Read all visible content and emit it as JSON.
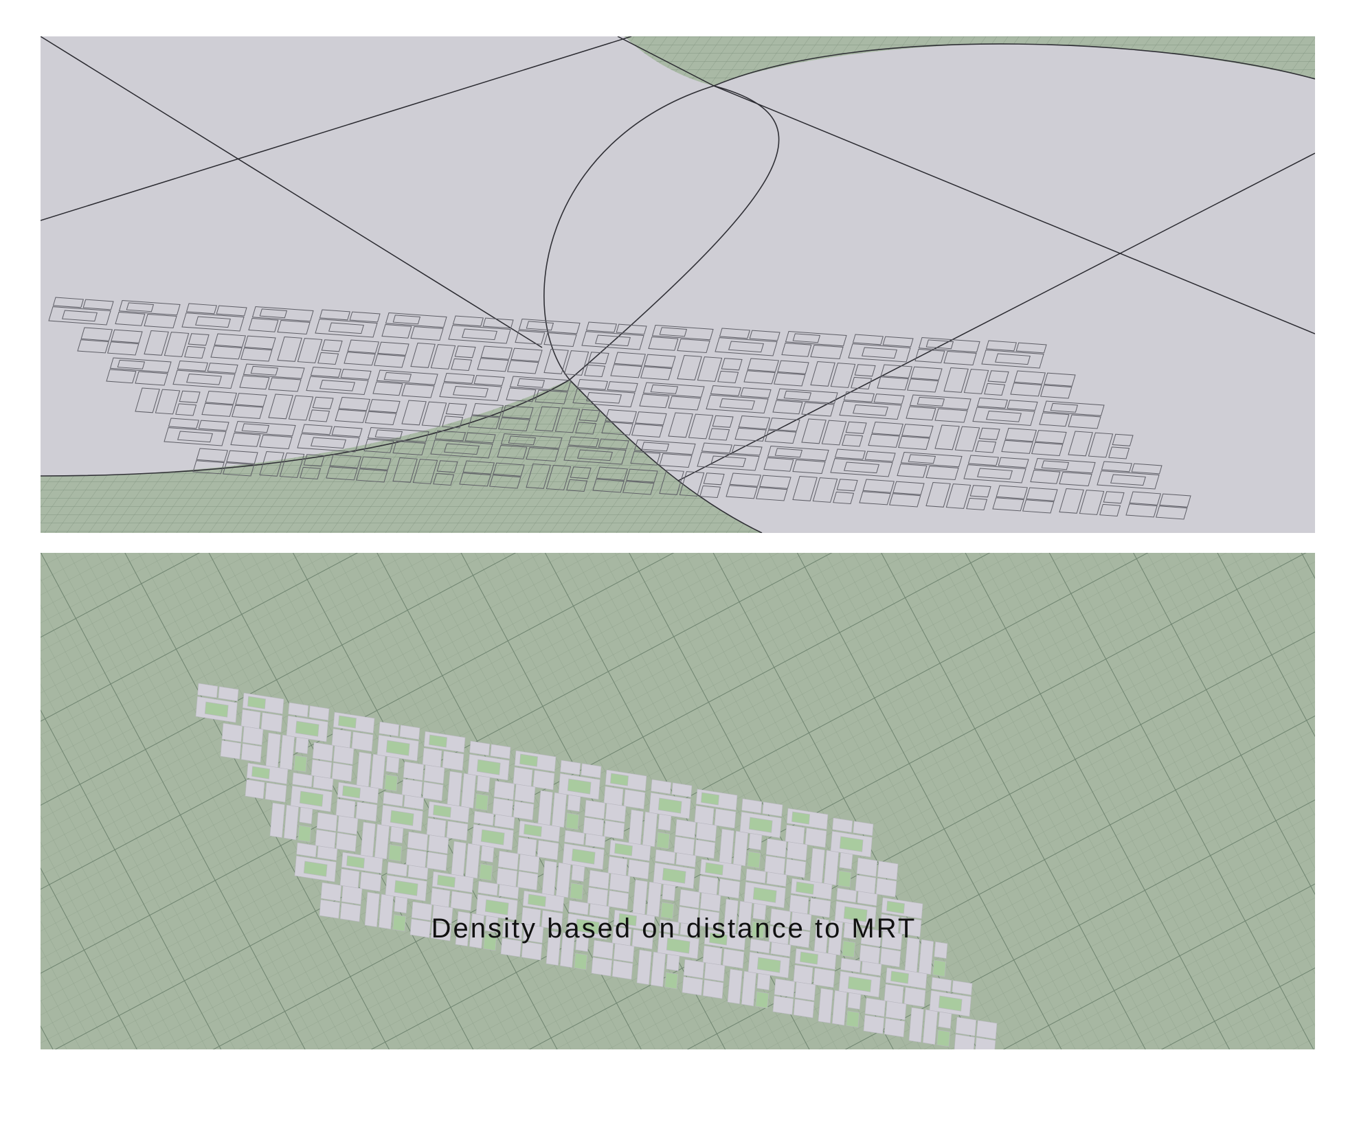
{
  "caption": "Density based on distance to MRT",
  "panels": [
    {
      "id": "top",
      "view": "wireframe plan overlay",
      "module_style": "outline"
    },
    {
      "id": "bottom",
      "view": "perspective on grid",
      "module_style": "filled"
    }
  ],
  "colors": {
    "ground_grey": "#cfced5",
    "grid_green": "#a7b7a2",
    "grid_line": "#7f9480",
    "module_fill": "#d2d0d9",
    "module_inset": "#a9cb9f",
    "outline": "#5e5e66"
  },
  "module_grid": {
    "rows": 6,
    "columns": 15
  }
}
